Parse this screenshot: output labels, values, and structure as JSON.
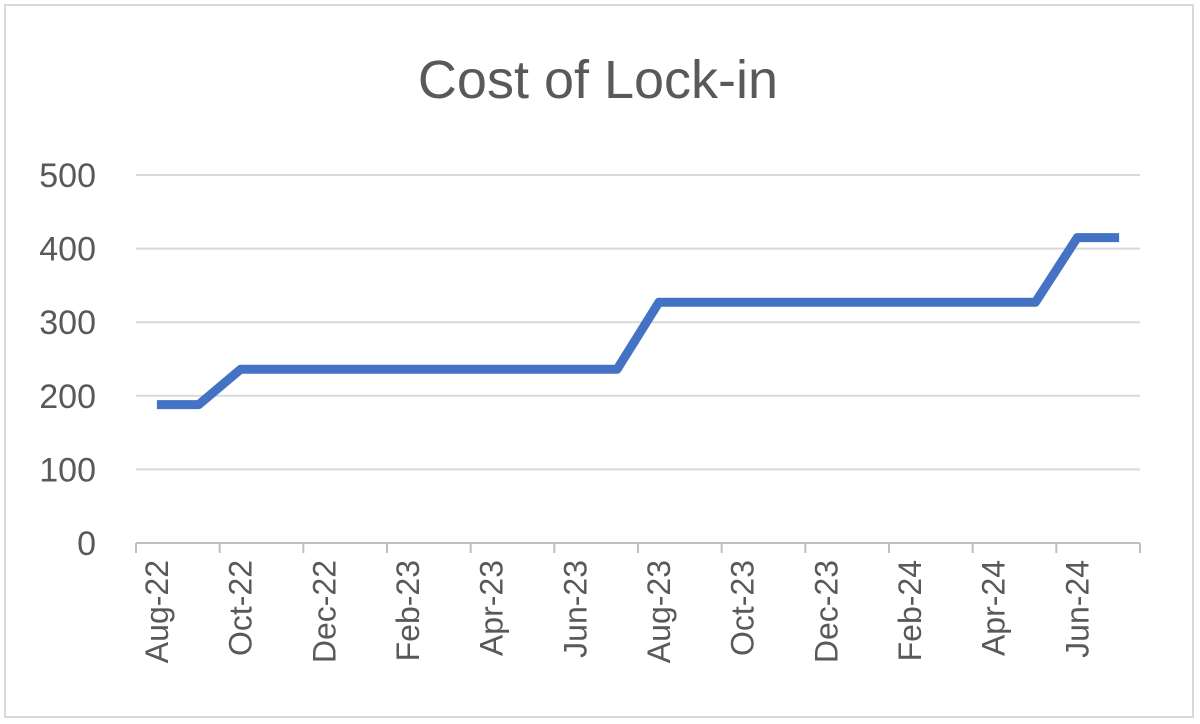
{
  "chart_data": {
    "type": "line",
    "title": "Cost of Lock-in",
    "xlabel": "",
    "ylabel": "",
    "ylim": [
      0,
      500
    ],
    "yticks": [
      "0",
      "100",
      "200",
      "300",
      "400",
      "500"
    ],
    "xticks": [
      "Aug-22",
      "Oct-22",
      "Dec-22",
      "Feb-23",
      "Apr-23",
      "Jun-23",
      "Aug-23",
      "Oct-23",
      "Dec-23",
      "Feb-24",
      "Apr-24",
      "Jun-24"
    ],
    "grid": true,
    "legend": "none",
    "series": [
      {
        "color": "#4472C4",
        "x": [
          "2022-08",
          "2022-09",
          "2022-10",
          "2022-11",
          "2022-12",
          "2023-01",
          "2023-02",
          "2023-03",
          "2023-04",
          "2023-05",
          "2023-06",
          "2023-07",
          "2023-08",
          "2023-09",
          "2023-10",
          "2023-11",
          "2023-12",
          "2024-01",
          "2024-02",
          "2024-03",
          "2024-04",
          "2024-05",
          "2024-06",
          "2024-07"
        ],
        "values": [
          188,
          188,
          236,
          236,
          236,
          236,
          236,
          236,
          236,
          236,
          236,
          236,
          327,
          327,
          327,
          327,
          327,
          327,
          327,
          327,
          327,
          327,
          415,
          415
        ]
      }
    ]
  }
}
